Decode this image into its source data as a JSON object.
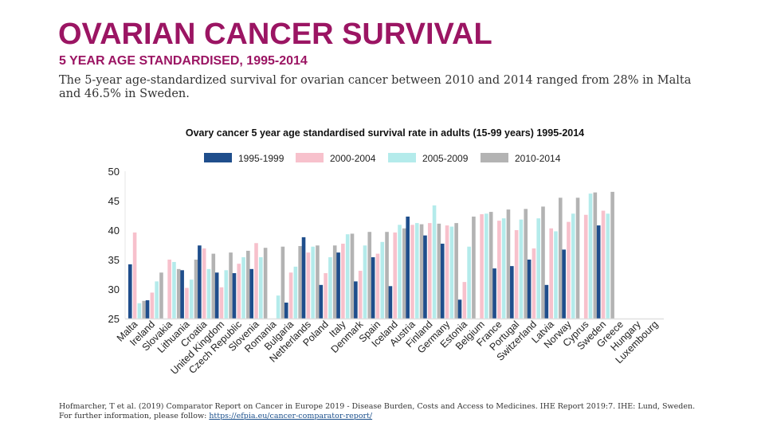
{
  "header": {
    "title": "OVARIAN CANCER SURVIVAL",
    "subtitle": "5 YEAR AGE STANDARDISED, 1995-2014",
    "description": "The 5-year age-standardized survival for ovarian cancer between 2010 and 2014 ranged from 28% in Malta and 46.5% in Sweden."
  },
  "footer": {
    "citation": "Hofmarcher, T et al. (2019) Comparator Report on Cancer in Europe 2019 - Disease Burden, Costs and Access to Medicines. IHE Report 2019:7. IHE: Lund, Sweden. For further information, please follow:",
    "link_text": "https://efpia.eu/cancer-comparator-report/"
  },
  "colors": {
    "accent": "#9b1563",
    "series": [
      "#1f4e8c",
      "#f7c1cc",
      "#b4ebeb",
      "#b3b3b3"
    ]
  },
  "chart_data": {
    "type": "bar",
    "title": "Ovary cancer 5 year age standardised survival rate in adults (15-99 years) 1995-2014",
    "xlabel": "",
    "ylabel": "",
    "ylim": [
      25,
      50
    ],
    "yticks": [
      25,
      30,
      35,
      40,
      45,
      50
    ],
    "grid": false,
    "legend_position": "top-center",
    "categories": [
      "Malta",
      "Ireland",
      "Slovakia",
      "Lithuania",
      "Croatia",
      "United Kingdom",
      "Czech Republic",
      "Slovenia",
      "Romania",
      "Bulgaria",
      "Netherlands",
      "Poland",
      "Italy",
      "Denmark",
      "Spain",
      "Iceland",
      "Austria",
      "Finland",
      "Germany",
      "Estonia",
      "Belgium",
      "France",
      "Portugal",
      "Switzerland",
      "Latvia",
      "Norway",
      "Cyprus",
      "Sweden",
      "Greece",
      "Hungary",
      "Luxembourg"
    ],
    "series": [
      {
        "name": "1995-1999",
        "values": [
          34.2,
          28.1,
          null,
          33.2,
          37.4,
          32.8,
          32.7,
          33.4,
          null,
          27.7,
          38.8,
          30.7,
          36.2,
          31.3,
          35.4,
          30.5,
          42.3,
          39.1,
          37.7,
          28.2,
          null,
          33.5,
          33.9,
          35.0,
          30.7,
          36.7,
          null,
          40.8,
          null,
          null,
          null
        ]
      },
      {
        "name": "2000-2004",
        "values": [
          39.6,
          29.4,
          35.0,
          30.2,
          36.9,
          30.3,
          34.3,
          37.8,
          null,
          32.8,
          36.2,
          32.7,
          37.7,
          33.1,
          36.0,
          39.6,
          40.9,
          41.2,
          40.8,
          31.2,
          42.7,
          41.6,
          40.0,
          36.9,
          40.3,
          41.4,
          42.6,
          43.3,
          null,
          null,
          null
        ]
      },
      {
        "name": "2005-2009",
        "values": [
          27.6,
          31.3,
          34.6,
          31.6,
          33.4,
          33.2,
          35.4,
          35.4,
          28.9,
          33.8,
          37.2,
          35.4,
          39.3,
          37.4,
          38.0,
          40.9,
          41.2,
          44.2,
          40.6,
          37.2,
          42.8,
          42.0,
          41.8,
          42.0,
          39.8,
          42.8,
          46.2,
          42.8,
          null,
          null,
          null
        ]
      },
      {
        "name": "2010-2014",
        "values": [
          28.0,
          32.8,
          33.4,
          35.0,
          36.0,
          36.2,
          36.5,
          37.0,
          37.2,
          37.3,
          37.4,
          37.4,
          39.4,
          39.7,
          39.7,
          40.3,
          41.0,
          41.1,
          41.2,
          42.3,
          43.1,
          43.5,
          43.6,
          44.0,
          45.5,
          45.5,
          46.4,
          46.5,
          null,
          null,
          null
        ]
      }
    ]
  }
}
